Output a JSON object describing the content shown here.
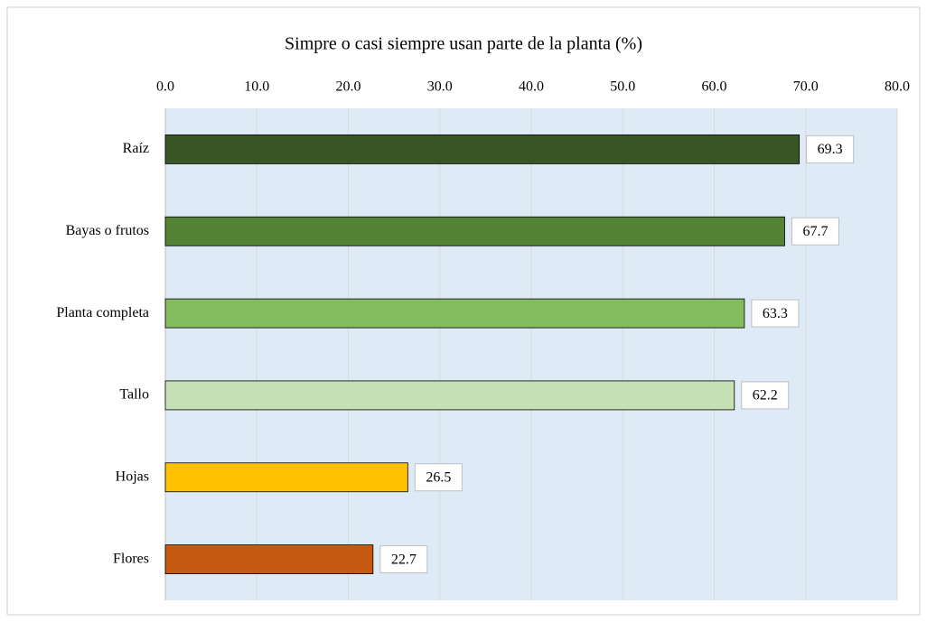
{
  "chart_data": {
    "type": "barh",
    "title": "Simpre o casi siempre usan parte de la planta (%)",
    "categories": [
      "Raíz",
      "Bayas o frutos",
      "Planta completa",
      "Tallo",
      "Hojas",
      "Flores"
    ],
    "values": [
      69.3,
      67.7,
      63.3,
      62.2,
      26.5,
      22.7
    ],
    "colors": [
      "#375623",
      "#548235",
      "#82bc5e",
      "#c5e0b4",
      "#ffc000",
      "#c55a11"
    ],
    "xlim": [
      0,
      80
    ],
    "xticks": [
      {
        "value": 0,
        "label": "0.0"
      },
      {
        "value": 10,
        "label": "10.0"
      },
      {
        "value": 20,
        "label": "20.0"
      },
      {
        "value": 30,
        "label": "30.0"
      },
      {
        "value": 40,
        "label": "40.0"
      },
      {
        "value": 50,
        "label": "50.0"
      },
      {
        "value": 60,
        "label": "60.0"
      },
      {
        "value": 70,
        "label": "70.0"
      },
      {
        "value": 80,
        "label": "80.0"
      }
    ],
    "grid": true
  }
}
